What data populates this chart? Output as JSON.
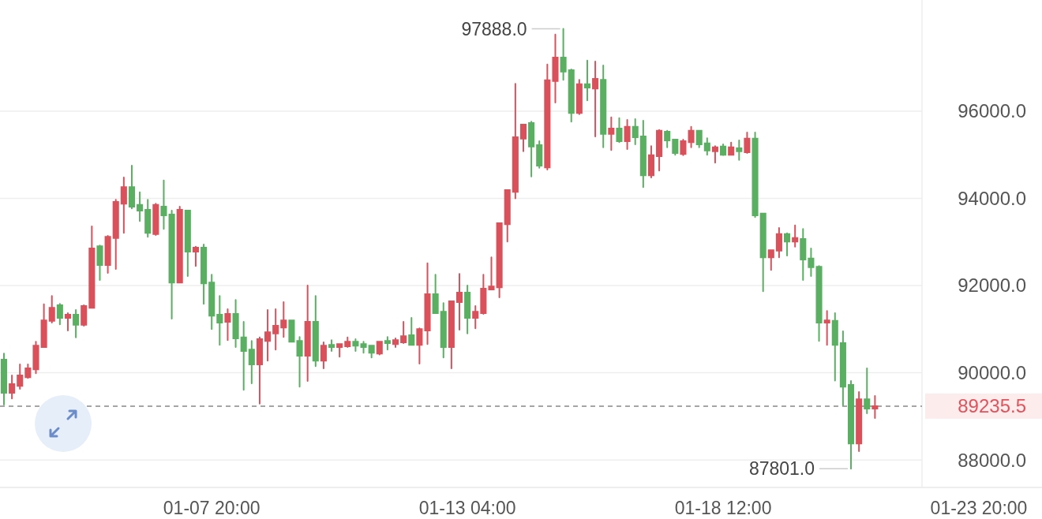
{
  "chart_data": {
    "type": "candlestick",
    "categories": [
      null,
      null,
      null,
      null,
      null,
      null,
      null,
      null,
      null,
      null,
      null,
      null,
      null,
      null,
      null,
      null,
      null,
      null,
      null,
      null,
      null,
      null,
      null,
      null,
      null,
      null,
      "01-07 20:00",
      null,
      null,
      null,
      null,
      null,
      null,
      null,
      null,
      null,
      null,
      null,
      null,
      null,
      null,
      null,
      null,
      null,
      null,
      null,
      null,
      null,
      null,
      null,
      null,
      null,
      null,
      null,
      null,
      null,
      null,
      null,
      "01-13 04:00",
      null,
      null,
      null,
      null,
      null,
      null,
      null,
      null,
      null,
      null,
      null,
      null,
      null,
      null,
      null,
      null,
      null,
      null,
      null,
      null,
      null,
      null,
      null,
      null,
      null,
      null,
      null,
      null,
      null,
      null,
      null,
      "01-18 12:00",
      null,
      null,
      null,
      null,
      null,
      null,
      null,
      null,
      null,
      null,
      null,
      null,
      null,
      null,
      null,
      null,
      null,
      null,
      null,
      null,
      null,
      null,
      null,
      null,
      null,
      null,
      null,
      null,
      null,
      null,
      null,
      "01-23 20:00"
    ],
    "ohlc": [
      [
        90300,
        90440,
        89270,
        89540
      ],
      [
        89540,
        89940,
        89410,
        89740
      ],
      [
        89700,
        90190,
        89630,
        89940
      ],
      [
        89900,
        90190,
        89880,
        90100
      ],
      [
        90080,
        90710,
        89990,
        90620
      ],
      [
        90590,
        91570,
        90590,
        91200
      ],
      [
        91190,
        91760,
        91150,
        91490
      ],
      [
        91550,
        91580,
        91110,
        91260
      ],
      [
        91260,
        91370,
        90970,
        91330
      ],
      [
        91330,
        91440,
        90810,
        91100
      ],
      [
        91100,
        91550,
        91080,
        91530
      ],
      [
        91490,
        93360,
        91490,
        92850
      ],
      [
        92900,
        92920,
        92130,
        92470
      ],
      [
        92470,
        93140,
        92290,
        93120
      ],
      [
        93090,
        93970,
        92380,
        93920
      ],
      [
        93880,
        94480,
        93210,
        94260
      ],
      [
        94260,
        94750,
        93770,
        93810
      ],
      [
        93850,
        94140,
        93480,
        93720
      ],
      [
        93740,
        93970,
        93120,
        93210
      ],
      [
        93180,
        93880,
        93160,
        93850
      ],
      [
        93810,
        94410,
        93300,
        93610
      ],
      [
        93630,
        93720,
        91240,
        92070
      ],
      [
        92070,
        93810,
        92070,
        93740
      ],
      [
        93720,
        93720,
        92220,
        92780
      ],
      [
        92780,
        92890,
        92450,
        92870
      ],
      [
        92870,
        92940,
        91580,
        92050
      ],
      [
        92070,
        92250,
        91000,
        91310
      ],
      [
        91330,
        91760,
        90640,
        91150
      ],
      [
        91170,
        91460,
        90750,
        91350
      ],
      [
        91350,
        91670,
        90590,
        90790
      ],
      [
        90810,
        91170,
        89610,
        90500
      ],
      [
        90530,
        90730,
        89760,
        90190
      ],
      [
        90190,
        90810,
        89290,
        90770
      ],
      [
        90730,
        91440,
        90280,
        90930
      ],
      [
        90900,
        91460,
        90530,
        91080
      ],
      [
        91040,
        91620,
        90820,
        91200
      ],
      [
        91200,
        91200,
        90710,
        90710
      ],
      [
        90730,
        90820,
        89680,
        90390
      ],
      [
        90390,
        92000,
        89810,
        91170
      ],
      [
        91170,
        91760,
        90150,
        90280
      ],
      [
        90280,
        90700,
        90100,
        90620
      ],
      [
        90640,
        90750,
        90500,
        90590
      ],
      [
        90590,
        90660,
        90370,
        90660
      ],
      [
        90610,
        90810,
        90590,
        90710
      ],
      [
        90710,
        90770,
        90500,
        90620
      ],
      [
        90660,
        90710,
        90460,
        90590
      ],
      [
        90620,
        90620,
        90350,
        90460
      ],
      [
        90440,
        90710,
        90420,
        90710
      ],
      [
        90730,
        90820,
        90530,
        90680
      ],
      [
        90660,
        90790,
        90590,
        90750
      ],
      [
        90700,
        91170,
        90680,
        90840
      ],
      [
        90860,
        91260,
        90640,
        90640
      ],
      [
        90640,
        91020,
        90210,
        91000
      ],
      [
        90970,
        92510,
        90660,
        91800
      ],
      [
        91800,
        92250,
        91370,
        91370
      ],
      [
        91400,
        91600,
        90350,
        90590
      ],
      [
        90590,
        91640,
        90100,
        91640
      ],
      [
        91620,
        92270,
        90990,
        91840
      ],
      [
        91840,
        92000,
        90900,
        91260
      ],
      [
        91260,
        91530,
        91020,
        91400
      ],
      [
        91370,
        92250,
        91350,
        91930
      ],
      [
        91910,
        92650,
        91910,
        91980
      ],
      [
        91960,
        93430,
        91730,
        93430
      ],
      [
        93410,
        94190,
        93010,
        94190
      ],
      [
        94150,
        96630,
        94000,
        95400
      ],
      [
        95370,
        95690,
        95080,
        95690
      ],
      [
        95730,
        95760,
        94500,
        95190
      ],
      [
        95220,
        95310,
        94700,
        94750
      ],
      [
        94710,
        97070,
        94660,
        96710
      ],
      [
        96690,
        97760,
        96200,
        97230
      ],
      [
        97230,
        97888,
        96720,
        96910
      ],
      [
        96940,
        96960,
        95760,
        95960
      ],
      [
        95960,
        96720,
        95930,
        96620
      ],
      [
        96620,
        97160,
        96250,
        96540
      ],
      [
        96520,
        97140,
        95420,
        96740
      ],
      [
        96720,
        97050,
        95170,
        95480
      ],
      [
        95480,
        95860,
        95110,
        95600
      ],
      [
        95600,
        95840,
        95290,
        95310
      ],
      [
        95310,
        95800,
        95130,
        95640
      ],
      [
        95640,
        95820,
        95240,
        95400
      ],
      [
        95420,
        95780,
        94260,
        94530
      ],
      [
        94530,
        95200,
        94480,
        94990
      ],
      [
        94970,
        95570,
        94640,
        95550
      ],
      [
        95530,
        95550,
        95170,
        95330
      ],
      [
        95350,
        95350,
        95000,
        95040
      ],
      [
        95020,
        95350,
        94990,
        95310
      ],
      [
        95290,
        95640,
        95170,
        95550
      ],
      [
        95550,
        95550,
        95170,
        95240
      ],
      [
        95260,
        95380,
        95000,
        95100
      ],
      [
        95080,
        95200,
        94820,
        95170
      ],
      [
        95190,
        95240,
        94990,
        95000
      ],
      [
        95000,
        95280,
        95000,
        95170
      ],
      [
        95150,
        95330,
        94880,
        95080
      ],
      [
        95060,
        95510,
        95040,
        95370
      ],
      [
        95370,
        95510,
        93570,
        93610
      ],
      [
        93650,
        93650,
        91870,
        92650
      ],
      [
        92650,
        92810,
        92360,
        92810
      ],
      [
        92800,
        93320,
        92650,
        93180
      ],
      [
        93180,
        93200,
        92690,
        93010
      ],
      [
        93010,
        93380,
        92890,
        93090
      ],
      [
        93070,
        93300,
        92130,
        92600
      ],
      [
        92620,
        92850,
        92220,
        92420
      ],
      [
        92430,
        92450,
        90730,
        91150
      ],
      [
        91150,
        91420,
        90640,
        91200
      ],
      [
        91190,
        91370,
        89820,
        90640
      ],
      [
        90680,
        90950,
        89250,
        89680
      ],
      [
        89720,
        89810,
        87801,
        88380
      ],
      [
        88380,
        89560,
        88200,
        89390
      ],
      [
        89390,
        90100,
        89070,
        89180
      ],
      [
        89180,
        89470,
        88960,
        89235.5
      ],
      null,
      null,
      null,
      null,
      null,
      null,
      null,
      null,
      null,
      null,
      null,
      null,
      null
    ],
    "colors": [
      "#5aaf62",
      "#d9515b",
      "#d9515b",
      "#d9515b",
      "#d9515b",
      "#d9515b",
      "#d9515b",
      "#5aaf62",
      "#d9515b",
      "#5aaf62",
      "#d9515b",
      "#d9515b",
      "#5aaf62",
      "#d9515b",
      "#d9515b",
      "#d9515b",
      "#5aaf62",
      "#5aaf62",
      "#5aaf62",
      "#d9515b",
      "#5aaf62",
      "#5aaf62",
      "#d9515b",
      "#5aaf62",
      "#d9515b",
      "#5aaf62",
      "#5aaf62",
      "#5aaf62",
      "#d9515b",
      "#5aaf62",
      "#5aaf62",
      "#5aaf62",
      "#d9515b",
      "#d9515b",
      "#d9515b",
      "#d9515b",
      "#5aaf62",
      "#5aaf62",
      "#d9515b",
      "#5aaf62",
      "#d9515b",
      "#5aaf62",
      "#d9515b",
      "#d9515b",
      "#5aaf62",
      "#5aaf62",
      "#5aaf62",
      "#d9515b",
      "#5aaf62",
      "#d9515b",
      "#d9515b",
      "#5aaf62",
      "#d9515b",
      "#d9515b",
      "#5aaf62",
      "#5aaf62",
      "#d9515b",
      "#d9515b",
      "#5aaf62",
      "#d9515b",
      "#d9515b",
      "#d9515b",
      "#d9515b",
      "#d9515b",
      "#d9515b",
      "#d9515b",
      "#5aaf62",
      "#5aaf62",
      "#d9515b",
      "#d9515b",
      "#5aaf62",
      "#5aaf62",
      "#d9515b",
      "#5aaf62",
      "#d9515b",
      "#5aaf62",
      "#d9515b",
      "#5aaf62",
      "#d9515b",
      "#5aaf62",
      "#5aaf62",
      "#d9515b",
      "#d9515b",
      "#5aaf62",
      "#5aaf62",
      "#d9515b",
      "#d9515b",
      "#5aaf62",
      "#5aaf62",
      "#d9515b",
      "#5aaf62",
      "#d9515b",
      "#5aaf62",
      "#d9515b",
      "#5aaf62",
      "#5aaf62",
      "#d9515b",
      "#d9515b",
      "#5aaf62",
      "#d9515b",
      "#5aaf62",
      "#5aaf62",
      "#5aaf62",
      "#d9515b",
      "#5aaf62",
      "#5aaf62",
      "#5aaf62",
      "#d9515b",
      "#5aaf62",
      "#d9515b",
      null,
      null,
      null,
      null,
      null,
      null,
      null,
      null,
      null,
      null,
      null,
      null,
      null
    ],
    "ylim": [
      87370,
      98550
    ],
    "yticks": [
      {
        "value": 88000,
        "label": "88000.0"
      },
      {
        "value": 90000,
        "label": "90000.0"
      },
      {
        "value": 92000,
        "label": "92000.0"
      },
      {
        "value": 94000,
        "label": "94000.0"
      },
      {
        "value": 96000,
        "label": "96000.0"
      }
    ],
    "grid": "y",
    "ref_lines": [
      {
        "axis": "y",
        "value": 89235.5,
        "label": "89235.5",
        "color": "#888888",
        "line_style": "dashed"
      }
    ],
    "annotations": [
      "97888.0",
      "87801.0"
    ]
  }
}
